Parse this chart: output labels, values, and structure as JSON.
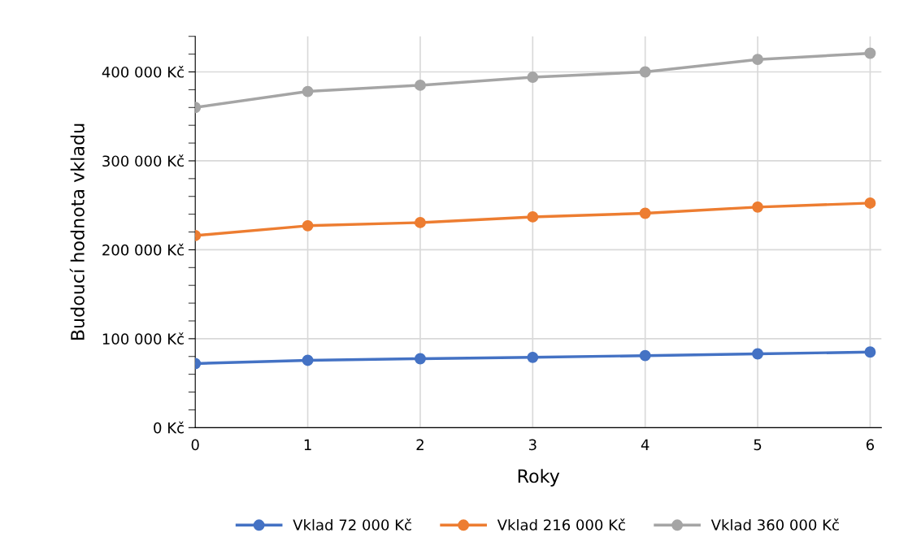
{
  "chart_data": {
    "type": "line",
    "xlabel": "Roky",
    "ylabel": "Budoucí hodnota vkladu",
    "x": [
      0,
      1,
      2,
      3,
      4,
      5,
      6
    ],
    "series": [
      {
        "name": "Vklad 72 000 Kč",
        "color": "#4472c4",
        "values": [
          72000,
          75700,
          77500,
          79000,
          81000,
          83000,
          85000
        ]
      },
      {
        "name": "Vklad 216 000 Kč",
        "color": "#ed7d31",
        "values": [
          216000,
          227000,
          230600,
          237000,
          241000,
          248000,
          252500
        ]
      },
      {
        "name": "Vklad 360 000 Kč",
        "color": "#a5a5a5",
        "values": [
          360000,
          378000,
          385000,
          394000,
          400000,
          414000,
          421000
        ]
      }
    ],
    "xlim": [
      0,
      6.1
    ],
    "xticks": [
      0,
      1,
      2,
      3,
      4,
      5,
      6
    ],
    "ylim": [
      0,
      440000
    ],
    "yticks": [
      {
        "value": 0,
        "label": "0 Kč"
      },
      {
        "value": 20000,
        "label": null
      },
      {
        "value": 40000,
        "label": null
      },
      {
        "value": 60000,
        "label": null
      },
      {
        "value": 80000,
        "label": null
      },
      {
        "value": 100000,
        "label": "100 000 Kč"
      },
      {
        "value": 120000,
        "label": null
      },
      {
        "value": 140000,
        "label": null
      },
      {
        "value": 160000,
        "label": null
      },
      {
        "value": 180000,
        "label": null
      },
      {
        "value": 200000,
        "label": "200 000 Kč"
      },
      {
        "value": 220000,
        "label": null
      },
      {
        "value": 240000,
        "label": null
      },
      {
        "value": 260000,
        "label": null
      },
      {
        "value": 280000,
        "label": null
      },
      {
        "value": 300000,
        "label": "300 000 Kč"
      },
      {
        "value": 320000,
        "label": null
      },
      {
        "value": 340000,
        "label": null
      },
      {
        "value": 360000,
        "label": null
      },
      {
        "value": 380000,
        "label": null
      },
      {
        "value": 400000,
        "label": "400 000 Kč"
      },
      {
        "value": 420000,
        "label": null
      },
      {
        "value": 440000,
        "label": null
      }
    ],
    "grid": true,
    "legend": "bottom",
    "marker": "circle",
    "line_style": "solid"
  }
}
